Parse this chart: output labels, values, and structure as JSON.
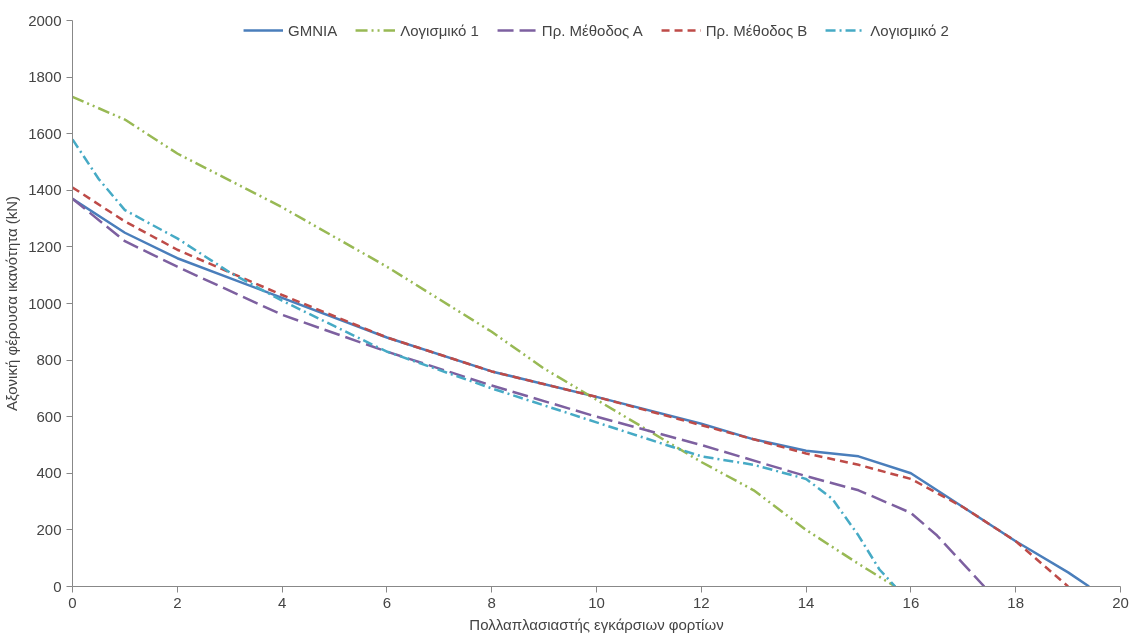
{
  "chart_data": {
    "type": "line",
    "xlabel": "Πολλαπλασιαστής εγκάρσιων φορτίων",
    "ylabel": "Αξονική φέρουσα ικανότητα (kN)",
    "xlim": [
      0,
      20
    ],
    "xticks": [
      0,
      2,
      4,
      6,
      8,
      10,
      12,
      14,
      16,
      18,
      20
    ],
    "ylim": [
      0,
      2000
    ],
    "yticks": [
      0,
      200,
      400,
      600,
      800,
      1000,
      1200,
      1400,
      1600,
      1800,
      2000
    ],
    "grid": false,
    "legend": "top",
    "marker": "none",
    "series": [
      {
        "name": "GMNIA",
        "color": "#4a7ebb",
        "line_style": "solid",
        "x": [
          0,
          1,
          2,
          4,
          6,
          8,
          10,
          12,
          13,
          14,
          15,
          16,
          17,
          18,
          19,
          19.4
        ],
        "values": [
          1370,
          1250,
          1160,
          1020,
          880,
          760,
          670,
          575,
          520,
          480,
          460,
          400,
          280,
          160,
          50,
          0
        ]
      },
      {
        "name": "Λογισμικό 1",
        "color": "#98b954",
        "line_style": "dashdotdot",
        "x": [
          0,
          1,
          2,
          4,
          6,
          8,
          9,
          10,
          11,
          12,
          13,
          14,
          15,
          15.7
        ],
        "values": [
          1730,
          1650,
          1530,
          1340,
          1130,
          900,
          770,
          660,
          550,
          440,
          340,
          200,
          80,
          0
        ]
      },
      {
        "name": "Πρ. Μέθοδος Α",
        "color": "#7d60a0",
        "line_style": "longdash",
        "x": [
          0,
          1,
          2,
          4,
          6,
          8,
          10,
          12,
          14,
          15,
          16,
          16.5,
          17,
          17.4
        ],
        "values": [
          1370,
          1220,
          1130,
          960,
          830,
          710,
          600,
          500,
          390,
          340,
          260,
          180,
          80,
          0
        ]
      },
      {
        "name": "Πρ. Μέθοδος Β",
        "color": "#be4b48",
        "line_style": "dashed",
        "x": [
          0,
          1,
          2,
          4,
          6,
          8,
          10,
          12,
          14,
          15,
          16,
          17,
          18,
          19
        ],
        "values": [
          1410,
          1290,
          1190,
          1030,
          880,
          760,
          670,
          570,
          470,
          430,
          380,
          280,
          160,
          0
        ]
      },
      {
        "name": "Λογισμικό 2",
        "color": "#46aac5",
        "line_style": "dashdot",
        "x": [
          0,
          0.5,
          1,
          2,
          3,
          4,
          5,
          6,
          8,
          10,
          12,
          13,
          14,
          14.5,
          15,
          15.4,
          15.7
        ],
        "values": [
          1580,
          1440,
          1330,
          1230,
          1110,
          1010,
          920,
          830,
          700,
          580,
          460,
          430,
          380,
          310,
          180,
          60,
          0
        ]
      }
    ]
  }
}
